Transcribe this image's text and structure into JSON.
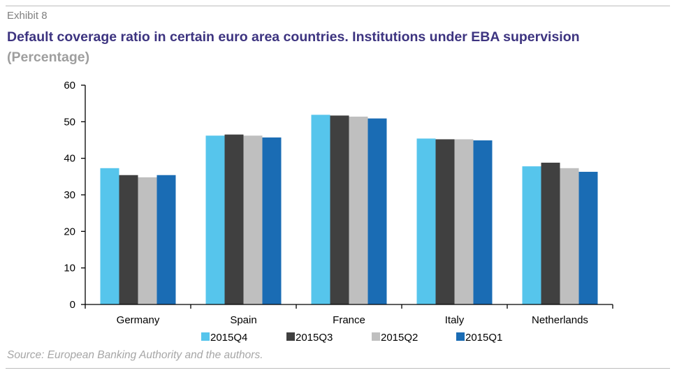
{
  "header": {
    "exhibit": "Exhibit 8",
    "title": "Default coverage ratio in certain euro area countries. Institutions under EBA supervision",
    "subtitle": "(Percentage)"
  },
  "footer": {
    "source": "Source: European Banking Authority and the authors."
  },
  "chart_data": {
    "type": "bar",
    "categories": [
      "Germany",
      "Spain",
      "France",
      "Italy",
      "Netherlands"
    ],
    "series": [
      {
        "name": "2015Q4",
        "color": "#56c5ec",
        "values": [
          37.3,
          46.2,
          51.9,
          45.4,
          37.8
        ]
      },
      {
        "name": "2015Q3",
        "color": "#404040",
        "values": [
          35.4,
          46.5,
          51.7,
          45.2,
          38.8
        ]
      },
      {
        "name": "2015Q2",
        "color": "#bfbfbf",
        "values": [
          34.8,
          46.2,
          51.4,
          45.2,
          37.3
        ]
      },
      {
        "name": "2015Q1",
        "color": "#1a6cb4",
        "values": [
          35.4,
          45.7,
          50.9,
          44.9,
          36.3
        ]
      }
    ],
    "ylim": [
      0,
      60
    ],
    "yticks": [
      "0",
      "10",
      "20",
      "30",
      "40",
      "50",
      "60"
    ],
    "grid": false,
    "legend_position": "bottom"
  }
}
